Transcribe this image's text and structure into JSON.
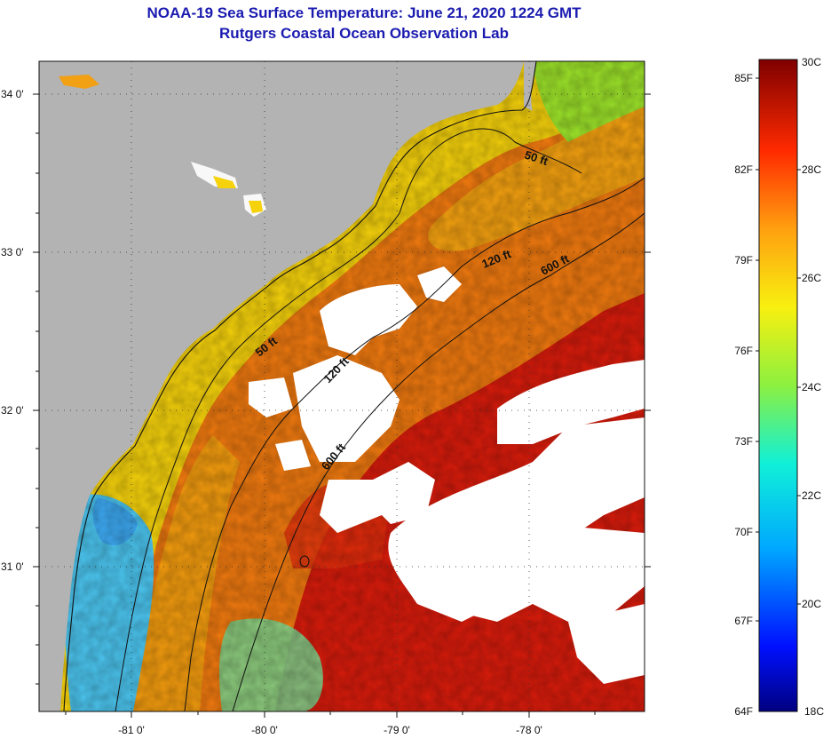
{
  "title": {
    "line1": "NOAA-19 Sea Surface Temperature:  June 21, 2020 1224 GMT",
    "line2": "Rutgers Coastal Ocean Observation Lab"
  },
  "map": {
    "lat_ticks": [
      "34 0'",
      "33 0'",
      "32 0'",
      "31 0'"
    ],
    "lon_ticks": [
      "-81 0'",
      "-80 0'",
      "-79 0'",
      "-78 0'"
    ],
    "isobaths": {
      "shallow_nearshore": "50 ft",
      "shallow_offshore": "50 ft",
      "mid_south": "120 ft",
      "mid_north": "120 ft",
      "deep_south": "600 ft",
      "deep_north": "600 ft"
    },
    "colors": {
      "land": "#b3b3b3",
      "clouds": "#ffffff",
      "warm_shelf": "#f07a10",
      "coastal_yellow": "#f6d20c",
      "gulf_stream": "#d81c0c",
      "cool_upwelling": "#4cc6f0",
      "green_nearshore": "#9ce22a"
    }
  },
  "colorbar": {
    "fahrenheit": [
      "85F",
      "82F",
      "79F",
      "76F",
      "73F",
      "70F",
      "67F",
      "64F"
    ],
    "celsius": [
      "30C",
      "28C",
      "26C",
      "24C",
      "22C",
      "20C",
      "18C"
    ]
  }
}
